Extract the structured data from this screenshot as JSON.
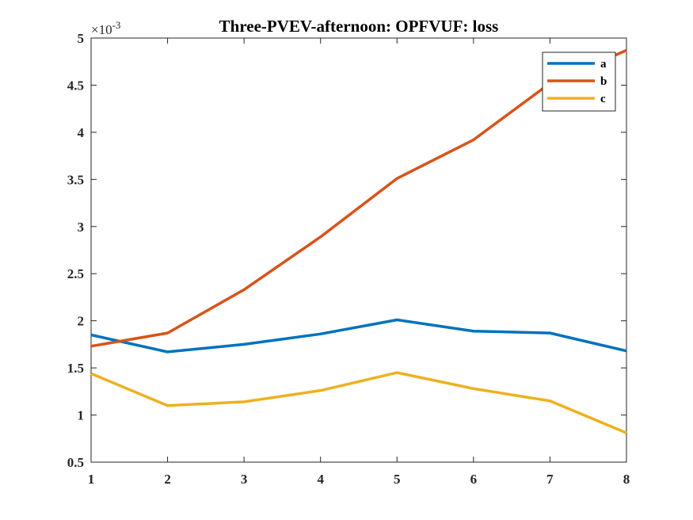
{
  "chart_data": {
    "type": "line",
    "title": "Three-PVEV-afternoon: OPFVUF: loss",
    "xlabel": "",
    "ylabel": "",
    "y_exponent_label": "×10",
    "y_exponent_power": "-3",
    "x": [
      1,
      2,
      3,
      4,
      5,
      6,
      7,
      8
    ],
    "xlim": [
      1,
      8
    ],
    "ylim": [
      0.5,
      5
    ],
    "xticks": [
      "1",
      "2",
      "3",
      "4",
      "5",
      "6",
      "7",
      "8"
    ],
    "yticks": [
      "0.5",
      "1",
      "1.5",
      "2",
      "2.5",
      "3",
      "3.5",
      "4",
      "4.5",
      "5"
    ],
    "grid": false,
    "legend_position": "top-right",
    "series": [
      {
        "name": "a",
        "color": "#0072BD",
        "values": [
          1.85,
          1.67,
          1.75,
          1.86,
          2.01,
          1.89,
          1.87,
          1.68
        ]
      },
      {
        "name": "b",
        "color": "#D95319",
        "values": [
          1.73,
          1.87,
          2.33,
          2.89,
          3.51,
          3.92,
          4.52,
          4.87
        ]
      },
      {
        "name": "c",
        "color": "#EDB120",
        "values": [
          1.44,
          1.1,
          1.14,
          1.26,
          1.45,
          1.28,
          1.15,
          0.81
        ]
      }
    ]
  }
}
